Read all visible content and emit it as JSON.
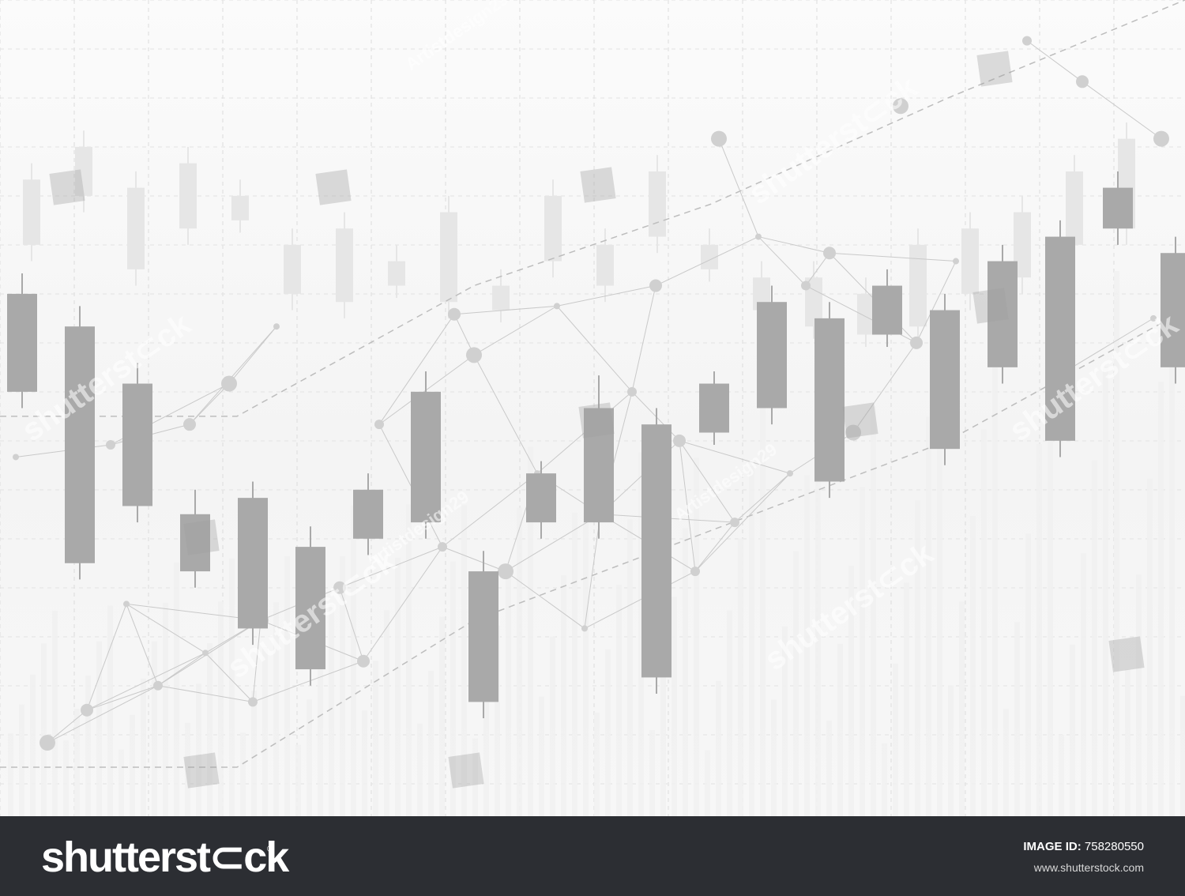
{
  "chart_data": {
    "type": "candlestick",
    "title": "",
    "xlabel": "",
    "ylabel": "",
    "grid": true,
    "legend": "none",
    "ylim": [
      0,
      1000
    ],
    "foreground_series": {
      "color": "#a9a9a9",
      "candles": [
        {
          "open": 520,
          "close": 640,
          "low": 500,
          "high": 665
        },
        {
          "open": 310,
          "close": 600,
          "low": 290,
          "high": 625
        },
        {
          "open": 380,
          "close": 530,
          "low": 360,
          "high": 555
        },
        {
          "open": 300,
          "close": 370,
          "low": 280,
          "high": 400
        },
        {
          "open": 230,
          "close": 390,
          "low": 210,
          "high": 410
        },
        {
          "open": 180,
          "close": 330,
          "low": 160,
          "high": 355
        },
        {
          "open": 340,
          "close": 400,
          "low": 320,
          "high": 420
        },
        {
          "open": 360,
          "close": 520,
          "low": 340,
          "high": 545
        },
        {
          "open": 140,
          "close": 300,
          "low": 120,
          "high": 325
        },
        {
          "open": 360,
          "close": 420,
          "low": 340,
          "high": 435
        },
        {
          "open": 360,
          "close": 500,
          "low": 340,
          "high": 540
        },
        {
          "open": 170,
          "close": 480,
          "low": 150,
          "high": 500
        },
        {
          "open": 470,
          "close": 530,
          "low": 455,
          "high": 545
        },
        {
          "open": 500,
          "close": 630,
          "low": 480,
          "high": 650
        },
        {
          "open": 410,
          "close": 610,
          "low": 390,
          "high": 630
        },
        {
          "open": 590,
          "close": 650,
          "low": 575,
          "high": 670
        },
        {
          "open": 450,
          "close": 620,
          "low": 430,
          "high": 640
        },
        {
          "open": 550,
          "close": 680,
          "low": 530,
          "high": 700
        },
        {
          "open": 460,
          "close": 710,
          "low": 440,
          "high": 730
        },
        {
          "open": 720,
          "close": 770,
          "low": 700,
          "high": 790
        },
        {
          "open": 550,
          "close": 690,
          "low": 530,
          "high": 710
        }
      ]
    },
    "background_series": {
      "color": "#e6e6e6",
      "candles": [
        {
          "open": 700,
          "close": 780,
          "low": 680,
          "high": 800
        },
        {
          "open": 760,
          "close": 820,
          "low": 740,
          "high": 840
        },
        {
          "open": 670,
          "close": 770,
          "low": 650,
          "high": 790
        },
        {
          "open": 720,
          "close": 800,
          "low": 700,
          "high": 820
        },
        {
          "open": 730,
          "close": 760,
          "low": 715,
          "high": 780
        },
        {
          "open": 640,
          "close": 700,
          "low": 620,
          "high": 720
        },
        {
          "open": 630,
          "close": 720,
          "low": 610,
          "high": 740
        },
        {
          "open": 650,
          "close": 680,
          "low": 635,
          "high": 700
        },
        {
          "open": 630,
          "close": 740,
          "low": 610,
          "high": 760
        },
        {
          "open": 620,
          "close": 650,
          "low": 605,
          "high": 670
        },
        {
          "open": 680,
          "close": 760,
          "low": 660,
          "high": 780
        },
        {
          "open": 650,
          "close": 700,
          "low": 630,
          "high": 720
        },
        {
          "open": 710,
          "close": 790,
          "low": 690,
          "high": 810
        },
        {
          "open": 670,
          "close": 700,
          "low": 655,
          "high": 720
        },
        {
          "open": 620,
          "close": 660,
          "low": 605,
          "high": 680
        },
        {
          "open": 600,
          "close": 660,
          "low": 585,
          "high": 680
        },
        {
          "open": 590,
          "close": 640,
          "low": 575,
          "high": 660
        },
        {
          "open": 600,
          "close": 700,
          "low": 580,
          "high": 720
        },
        {
          "open": 640,
          "close": 720,
          "low": 620,
          "high": 740
        },
        {
          "open": 660,
          "close": 740,
          "low": 640,
          "high": 760
        },
        {
          "open": 700,
          "close": 790,
          "low": 680,
          "high": 810
        },
        {
          "open": 720,
          "close": 830,
          "low": 700,
          "high": 850
        }
      ]
    },
    "trend_lines": [
      {
        "style": "dashed",
        "points": [
          [
            0,
            490
          ],
          [
            300,
            490
          ],
          [
            600,
            650
          ],
          [
            900,
            750
          ],
          [
            1200,
            880
          ],
          [
            1500,
            1000
          ]
        ]
      },
      {
        "style": "dashed",
        "points": [
          [
            0,
            60
          ],
          [
            300,
            60
          ],
          [
            600,
            240
          ],
          [
            900,
            350
          ],
          [
            1200,
            460
          ],
          [
            1500,
            620
          ]
        ]
      }
    ],
    "network_nodes": [
      [
        20,
        440
      ],
      [
        140,
        455
      ],
      [
        240,
        480
      ],
      [
        290,
        530
      ],
      [
        350,
        600
      ],
      [
        480,
        480
      ],
      [
        575,
        615
      ],
      [
        600,
        565
      ],
      [
        705,
        625
      ],
      [
        800,
        520
      ],
      [
        830,
        650
      ],
      [
        910,
        830
      ],
      [
        960,
        710
      ],
      [
        1020,
        650
      ],
      [
        1050,
        690
      ],
      [
        1140,
        870
      ],
      [
        1210,
        680
      ],
      [
        1300,
        950
      ],
      [
        1370,
        900
      ],
      [
        1470,
        830
      ],
      [
        1460,
        610
      ],
      [
        1340,
        540
      ],
      [
        1160,
        580
      ],
      [
        1080,
        470
      ],
      [
        1000,
        420
      ],
      [
        930,
        360
      ],
      [
        860,
        460
      ],
      [
        760,
        370
      ],
      [
        680,
        420
      ],
      [
        560,
        330
      ],
      [
        430,
        280
      ],
      [
        330,
        240
      ],
      [
        260,
        200
      ],
      [
        200,
        160
      ],
      [
        110,
        130
      ],
      [
        60,
        90
      ],
      [
        160,
        260
      ],
      [
        320,
        140
      ],
      [
        460,
        190
      ],
      [
        640,
        300
      ],
      [
        740,
        230
      ],
      [
        880,
        300
      ]
    ]
  },
  "watermark": {
    "brand": "shutterstock",
    "repeated_text": [
      "shutterst⊂ck",
      "Artistdesign29"
    ],
    "image_id_label": "IMAGE ID:",
    "image_id_value": "758280550",
    "site": "www.shutterstock.com"
  }
}
